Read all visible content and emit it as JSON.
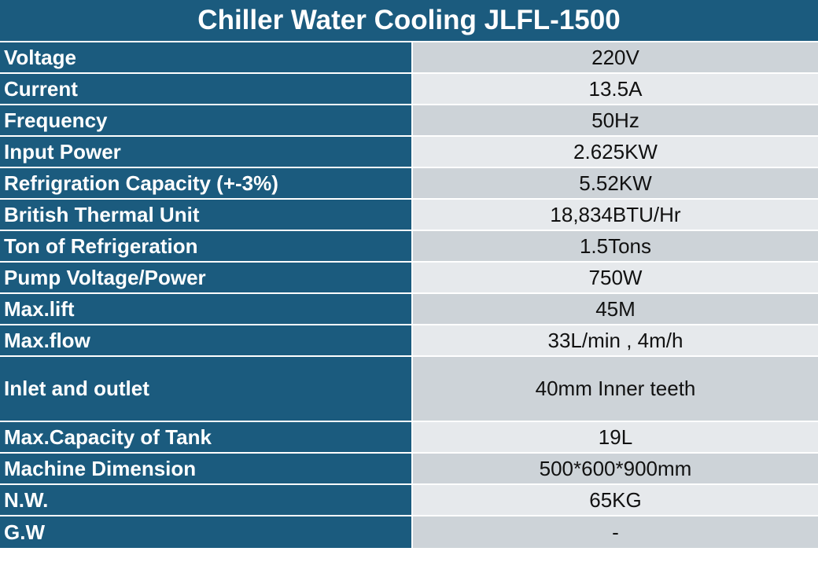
{
  "title": "Chiller Water Cooling JLFL-1500",
  "colors": {
    "header_bg": "#1b5b7e",
    "label_bg": "#1b5b7e",
    "value_bg_dark": "#cdd3d8",
    "value_bg_light": "#e6e9ec"
  },
  "rows": [
    {
      "label": "Voltage",
      "value": "220V"
    },
    {
      "label": "Current",
      "value": "13.5A"
    },
    {
      "label": "Frequency",
      "value": "50Hz"
    },
    {
      "label": "Input Power",
      "value": "2.625KW"
    },
    {
      "label": "Refrigration Capacity (+-3%)",
      "value": "5.52KW"
    },
    {
      "label": "British Thermal Unit",
      "value": "18,834BTU/Hr"
    },
    {
      "label": "Ton of Refrigeration",
      "value": "1.5Tons"
    },
    {
      "label": "Pump Voltage/Power",
      "value": "750W"
    },
    {
      "label": "Max.lift",
      "value": "45M"
    },
    {
      "label": "Max.flow",
      "value": "33L/min , 4m/h"
    },
    {
      "label": "Inlet and outlet",
      "value": "40mm Inner teeth"
    },
    {
      "label": "Max.Capacity of Tank",
      "value": "19L"
    },
    {
      "label": "Machine Dimension",
      "value": "500*600*900mm"
    },
    {
      "label": "N.W.",
      "value": "65KG"
    },
    {
      "label": "G.W",
      "value": "-"
    }
  ]
}
